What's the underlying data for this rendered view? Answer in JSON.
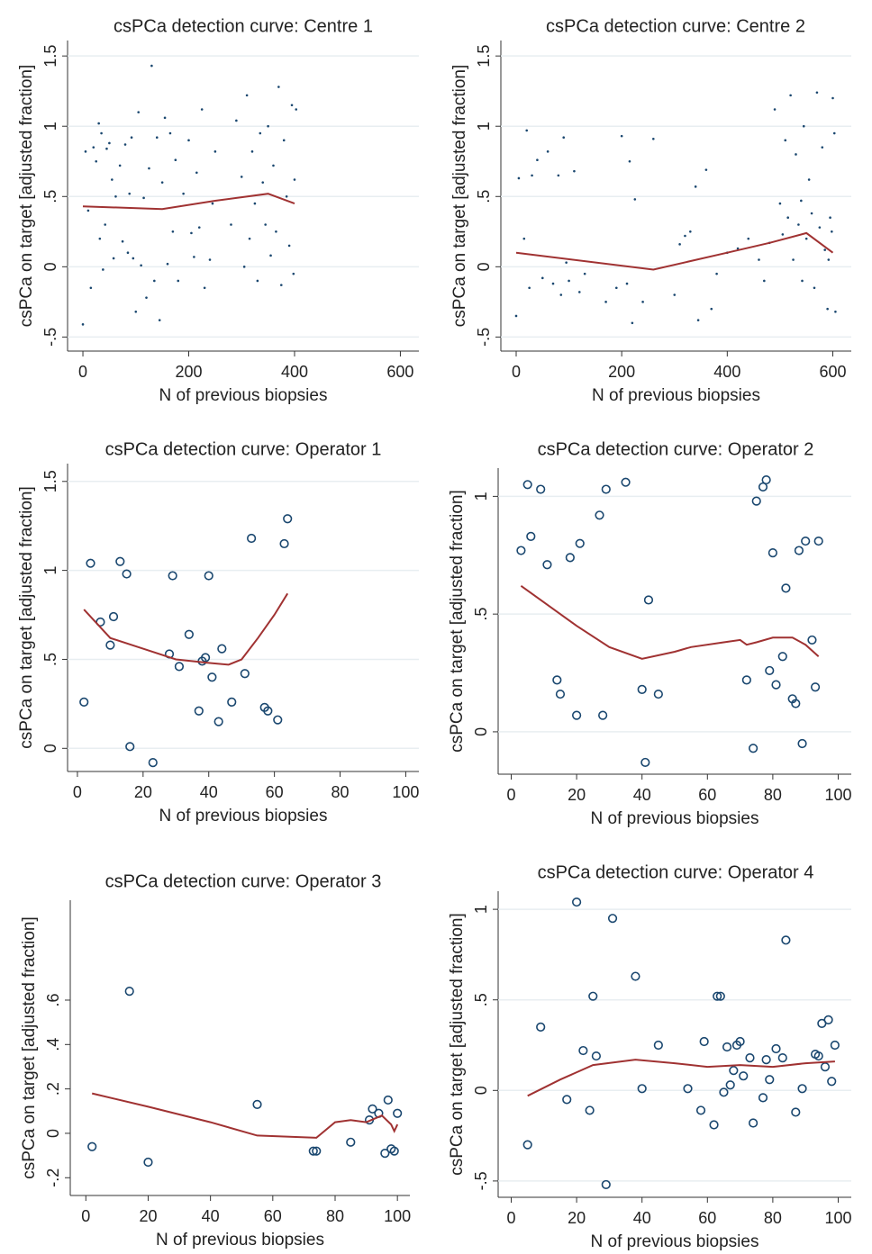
{
  "chart_data": [
    {
      "type": "scatter",
      "title": "csPCa detection curve: Centre 1",
      "xlabel": "N of previous biopsies",
      "ylabel": "csPCa on target [adjusted fraction]",
      "marker": "dot",
      "grid": true,
      "xlim": [
        -29,
        635
      ],
      "xticks": [
        0,
        200,
        400,
        600
      ],
      "ylim": [
        -0.6,
        1.61
      ],
      "yticks": [
        {
          "value": -0.5,
          "label": "-.5"
        },
        0,
        {
          "value": 0.5,
          "label": ".5"
        },
        1,
        1.5
      ],
      "series": [
        {
          "type": "scatter",
          "color": "#1a476f",
          "x": [
            0,
            5,
            10,
            15,
            20,
            25,
            30,
            32,
            35,
            38,
            42,
            45,
            50,
            55,
            58,
            62,
            70,
            75,
            80,
            85,
            88,
            92,
            95,
            100,
            105,
            110,
            115,
            120,
            125,
            130,
            135,
            140,
            145,
            150,
            155,
            160,
            165,
            170,
            175,
            180,
            190,
            200,
            205,
            210,
            215,
            220,
            225,
            230,
            240,
            245,
            250,
            280,
            290,
            300,
            305,
            310,
            315,
            320,
            325,
            330,
            335,
            340,
            345,
            350,
            355,
            360,
            365,
            370,
            375,
            380,
            385,
            390,
            395,
            400,
            403,
            398
          ],
          "values": [
            -0.41,
            0.82,
            0.4,
            -0.15,
            0.85,
            0.75,
            1.02,
            0.2,
            0.95,
            -0.02,
            0.3,
            0.84,
            0.88,
            0.62,
            0.06,
            0.5,
            0.72,
            0.18,
            0.87,
            0.1,
            0.52,
            0.92,
            0.06,
            -0.32,
            1.1,
            0.01,
            0.49,
            -0.22,
            0.7,
            1.43,
            -0.1,
            0.92,
            -0.38,
            0.6,
            1.06,
            0.02,
            0.95,
            0.25,
            0.76,
            -0.1,
            0.52,
            0.9,
            0.24,
            0.07,
            0.67,
            0.28,
            1.12,
            -0.15,
            0.05,
            0.45,
            0.82,
            0.3,
            1.04,
            0.64,
            0.0,
            1.22,
            0.2,
            0.82,
            0.45,
            -0.1,
            0.95,
            0.6,
            0.3,
            1.0,
            0.08,
            0.72,
            0.25,
            1.28,
            -0.13,
            0.9,
            0.5,
            0.15,
            1.15,
            0.62,
            1.12,
            -0.05
          ]
        },
        {
          "type": "line",
          "color": "#a03232",
          "x": [
            0,
            150,
            250,
            350,
            400
          ],
          "values": [
            0.43,
            0.41,
            0.47,
            0.52,
            0.45
          ]
        }
      ]
    },
    {
      "type": "scatter",
      "title": "csPCa detection curve: Centre 2",
      "xlabel": "N of previous biopsies",
      "ylabel": "csPCa on target [adjusted fraction]",
      "marker": "dot",
      "grid": true,
      "xlim": [
        -29,
        635
      ],
      "xticks": [
        0,
        200,
        400,
        600
      ],
      "ylim": [
        -0.6,
        1.61
      ],
      "yticks": [
        {
          "value": -0.5,
          "label": "-.5"
        },
        0,
        {
          "value": 0.5,
          "label": ".5"
        },
        1,
        1.5
      ],
      "series": [
        {
          "type": "scatter",
          "color": "#1a476f",
          "x": [
            0,
            5,
            15,
            20,
            25,
            30,
            40,
            50,
            60,
            70,
            80,
            85,
            90,
            95,
            100,
            110,
            120,
            130,
            170,
            190,
            200,
            210,
            215,
            220,
            225,
            240,
            260,
            300,
            310,
            320,
            330,
            340,
            345,
            360,
            370,
            380,
            400,
            420,
            440,
            460,
            470,
            480,
            490,
            500,
            505,
            510,
            515,
            520,
            525,
            530,
            535,
            540,
            542,
            545,
            550,
            555,
            560,
            565,
            570,
            575,
            580,
            585,
            590,
            595,
            600,
            603,
            605,
            598,
            592
          ],
          "values": [
            -0.35,
            0.63,
            0.2,
            0.97,
            -0.15,
            0.65,
            0.76,
            -0.08,
            0.82,
            -0.12,
            0.65,
            -0.2,
            0.92,
            0.03,
            -0.1,
            0.68,
            -0.18,
            -0.05,
            -0.25,
            -0.15,
            0.93,
            -0.12,
            0.75,
            -0.4,
            0.48,
            -0.25,
            0.91,
            -0.2,
            0.16,
            0.22,
            0.25,
            0.57,
            -0.38,
            0.69,
            -0.3,
            -0.05,
            0.1,
            0.13,
            0.2,
            0.05,
            -0.1,
            0.17,
            1.12,
            0.45,
            0.23,
            0.9,
            0.35,
            1.22,
            0.05,
            0.8,
            0.3,
            0.47,
            -0.1,
            1.0,
            0.2,
            0.62,
            0.38,
            -0.15,
            1.24,
            0.28,
            0.85,
            0.12,
            -0.3,
            0.35,
            1.2,
            0.95,
            -0.32,
            0.25,
            0.05
          ]
        },
        {
          "type": "line",
          "color": "#a03232",
          "x": [
            0,
            260,
            400,
            480,
            550,
            600
          ],
          "values": [
            0.1,
            -0.02,
            0.1,
            0.17,
            0.24,
            0.1
          ]
        }
      ]
    },
    {
      "type": "scatter",
      "title": "csPCa detection curve: Operator 1",
      "xlabel": "N of previous biopsies",
      "ylabel": "csPCa on target [adjusted fraction]",
      "marker": "circle",
      "grid": true,
      "xlim": [
        -3,
        104
      ],
      "xticks": [
        0,
        20,
        40,
        60,
        80,
        100
      ],
      "ylim": [
        -0.13,
        1.6
      ],
      "yticks": [
        0,
        {
          "value": 0.5,
          "label": ".5"
        },
        1,
        1.5
      ],
      "series": [
        {
          "type": "scatter",
          "color": "#1a476f",
          "x": [
            2,
            4,
            7,
            10,
            11,
            13,
            15,
            16,
            23,
            28,
            29,
            31,
            34,
            37,
            38,
            39,
            40,
            41,
            43,
            44,
            47,
            51,
            53,
            57,
            58,
            61,
            63,
            64
          ],
          "values": [
            0.26,
            1.04,
            0.71,
            0.58,
            0.74,
            1.05,
            0.98,
            0.01,
            -0.08,
            0.53,
            0.97,
            0.46,
            0.64,
            0.21,
            0.49,
            0.51,
            0.97,
            0.4,
            0.15,
            0.56,
            0.26,
            0.42,
            1.18,
            0.23,
            0.21,
            0.16,
            1.15,
            1.29
          ]
        },
        {
          "type": "line",
          "color": "#a03232",
          "x": [
            2,
            10,
            20,
            30,
            40,
            46,
            50,
            55,
            60,
            64
          ],
          "values": [
            0.78,
            0.62,
            0.56,
            0.5,
            0.48,
            0.47,
            0.5,
            0.62,
            0.75,
            0.87
          ]
        }
      ]
    },
    {
      "type": "scatter",
      "title": "csPCa detection curve: Operator 2",
      "xlabel": "N of previous biopsies",
      "ylabel": "csPCa on target [adjusted fraction]",
      "marker": "circle",
      "grid": true,
      "xlim": [
        -4,
        104
      ],
      "xticks": [
        0,
        20,
        40,
        60,
        80,
        100
      ],
      "ylim": [
        -0.18,
        1.12
      ],
      "yticks": [
        0,
        {
          "value": 0.5,
          "label": ".5"
        },
        1
      ],
      "series": [
        {
          "type": "scatter",
          "color": "#1a476f",
          "x": [
            3,
            5,
            6,
            9,
            11,
            14,
            15,
            18,
            20,
            21,
            27,
            28,
            29,
            35,
            40,
            41,
            42,
            45,
            72,
            74,
            75,
            77,
            78,
            79,
            80,
            81,
            83,
            84,
            86,
            87,
            88,
            89,
            90,
            92,
            93,
            94
          ],
          "values": [
            0.77,
            1.05,
            0.83,
            1.03,
            0.71,
            0.22,
            0.16,
            0.74,
            0.07,
            0.8,
            0.92,
            0.07,
            1.03,
            1.06,
            0.18,
            -0.13,
            0.56,
            0.16,
            0.22,
            -0.07,
            0.98,
            1.04,
            1.07,
            0.26,
            0.76,
            0.2,
            0.32,
            0.61,
            0.14,
            0.12,
            0.77,
            -0.05,
            0.81,
            0.39,
            0.19,
            0.81
          ]
        },
        {
          "type": "line",
          "color": "#a03232",
          "x": [
            3,
            10,
            20,
            30,
            40,
            50,
            55,
            65,
            70,
            72,
            75,
            80,
            86,
            90,
            94
          ],
          "values": [
            0.62,
            0.55,
            0.45,
            0.36,
            0.31,
            0.34,
            0.36,
            0.38,
            0.39,
            0.37,
            0.38,
            0.4,
            0.4,
            0.37,
            0.32
          ]
        }
      ]
    },
    {
      "type": "scatter",
      "title": "csPCa detection curve: Operator 3",
      "xlabel": "N of previous biopsies",
      "ylabel": "csPCa on target [adjusted fraction]",
      "marker": "circle",
      "grid": false,
      "xlim": [
        -5,
        104
      ],
      "xticks": [
        0,
        20,
        40,
        60,
        80,
        100
      ],
      "ylim": [
        -0.28,
        1.05
      ],
      "yticks": [
        {
          "value": -0.2,
          "label": "-.2"
        },
        0,
        {
          "value": 0.2,
          "label": ".2"
        },
        {
          "value": 0.4,
          "label": ".4"
        },
        {
          "value": 0.6,
          "label": ".6"
        }
      ],
      "series": [
        {
          "type": "scatter",
          "color": "#1a476f",
          "x": [
            2,
            14,
            20,
            55,
            73,
            74,
            85,
            91,
            92,
            94,
            96,
            97,
            98,
            99,
            100
          ],
          "values": [
            -0.06,
            0.64,
            -0.13,
            0.13,
            -0.08,
            -0.08,
            -0.04,
            0.06,
            0.11,
            0.09,
            -0.09,
            0.15,
            -0.07,
            -0.08,
            0.09
          ]
        },
        {
          "type": "line",
          "color": "#a03232",
          "x": [
            2,
            20,
            40,
            55,
            74,
            80,
            85,
            90,
            95,
            98,
            99,
            100
          ],
          "values": [
            0.18,
            0.12,
            0.05,
            -0.01,
            -0.02,
            0.05,
            0.06,
            0.05,
            0.08,
            0.04,
            0.01,
            0.04
          ]
        }
      ]
    },
    {
      "type": "scatter",
      "title": "csPCa detection curve: Operator 4",
      "xlabel": "N of previous biopsies",
      "ylabel": "csPCa on target [adjusted fraction]",
      "marker": "circle",
      "grid": true,
      "xlim": [
        -4,
        104
      ],
      "xticks": [
        0,
        20,
        40,
        60,
        80,
        100
      ],
      "ylim": [
        -0.59,
        1.1
      ],
      "yticks": [
        {
          "value": -0.5,
          "label": "-.5"
        },
        0,
        {
          "value": 0.5,
          "label": ".5"
        },
        1
      ],
      "series": [
        {
          "type": "scatter",
          "color": "#1a476f",
          "x": [
            5,
            9,
            17,
            20,
            22,
            24,
            25,
            26,
            29,
            31,
            38,
            40,
            45,
            54,
            58,
            59,
            62,
            63,
            64,
            65,
            66,
            67,
            68,
            69,
            70,
            71,
            73,
            74,
            77,
            78,
            79,
            81,
            83,
            84,
            87,
            89,
            93,
            94,
            95,
            96,
            97,
            98,
            99
          ],
          "values": [
            -0.3,
            0.35,
            -0.05,
            1.04,
            0.22,
            -0.11,
            0.52,
            0.19,
            -0.52,
            0.95,
            0.63,
            0.01,
            0.25,
            0.01,
            -0.11,
            0.27,
            -0.19,
            0.52,
            0.52,
            -0.01,
            0.24,
            0.03,
            0.11,
            0.25,
            0.27,
            0.08,
            0.18,
            -0.18,
            -0.04,
            0.17,
            0.06,
            0.23,
            0.18,
            0.83,
            -0.12,
            0.01,
            0.2,
            0.19,
            0.37,
            0.13,
            0.39,
            0.05,
            0.25
          ]
        },
        {
          "type": "line",
          "color": "#a03232",
          "x": [
            5,
            15,
            25,
            38,
            50,
            60,
            70,
            80,
            90,
            99
          ],
          "values": [
            -0.03,
            0.06,
            0.14,
            0.17,
            0.15,
            0.13,
            0.14,
            0.13,
            0.15,
            0.16
          ]
        }
      ]
    }
  ]
}
